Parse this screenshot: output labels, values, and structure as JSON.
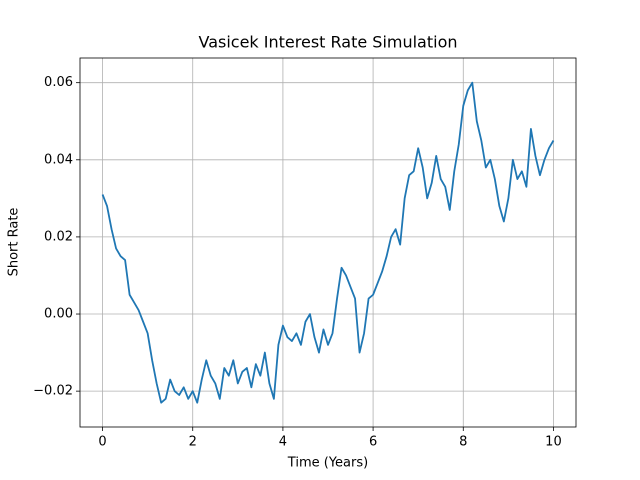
{
  "chart_data": {
    "type": "line",
    "title": "Vasicek Interest Rate Simulation",
    "x_label": "Time (Years)",
    "y_label": "Short Rate",
    "x": [
      0,
      0.1,
      0.2,
      0.3,
      0.4,
      0.5,
      0.6,
      0.7,
      0.8,
      0.9,
      1,
      1.1,
      1.2,
      1.3,
      1.4,
      1.5,
      1.6,
      1.7,
      1.8,
      1.9,
      2,
      2.1,
      2.2,
      2.3,
      2.4,
      2.5,
      2.6,
      2.7,
      2.8,
      2.9,
      3,
      3.1,
      3.2,
      3.3,
      3.4,
      3.5,
      3.6,
      3.7,
      3.8,
      3.9,
      4,
      4.1,
      4.2,
      4.3,
      4.4,
      4.5,
      4.6,
      4.7,
      4.8,
      4.9,
      5,
      5.1,
      5.2,
      5.3,
      5.4,
      5.5,
      5.6,
      5.7,
      5.8,
      5.9,
      6,
      6.1,
      6.2,
      6.3,
      6.4,
      6.5,
      6.6,
      6.7,
      6.8,
      6.9,
      7,
      7.1,
      7.2,
      7.3,
      7.4,
      7.5,
      7.6,
      7.7,
      7.8,
      7.9,
      8,
      8.1,
      8.2,
      8.3,
      8.4,
      8.5,
      8.6,
      8.7,
      8.8,
      8.9,
      9,
      9.1,
      9.2,
      9.3,
      9.4,
      9.5,
      9.6,
      9.7,
      9.8,
      9.9,
      10
    ],
    "series": [
      {
        "color": "#1f77b4",
        "values": [
          0.031,
          0.028,
          0.022,
          0.017,
          0.015,
          0.014,
          0.005,
          0.003,
          0.001,
          -0.002,
          -0.005,
          -0.012,
          -0.018,
          -0.023,
          -0.022,
          -0.017,
          -0.02,
          -0.021,
          -0.019,
          -0.022,
          -0.02,
          -0.023,
          -0.017,
          -0.012,
          -0.016,
          -0.018,
          -0.022,
          -0.014,
          -0.016,
          -0.012,
          -0.018,
          -0.015,
          -0.014,
          -0.019,
          -0.013,
          -0.016,
          -0.01,
          -0.018,
          -0.022,
          -0.008,
          -0.003,
          -0.006,
          -0.007,
          -0.005,
          -0.008,
          -0.002,
          0.0,
          -0.006,
          -0.01,
          -0.004,
          -0.008,
          -0.005,
          0.004,
          0.012,
          0.01,
          0.007,
          0.004,
          -0.01,
          -0.005,
          0.004,
          0.005,
          0.008,
          0.011,
          0.015,
          0.02,
          0.022,
          0.018,
          0.03,
          0.036,
          0.037,
          0.043,
          0.038,
          0.03,
          0.034,
          0.041,
          0.035,
          0.033,
          0.027,
          0.037,
          0.044,
          0.054,
          0.058,
          0.06,
          0.05,
          0.045,
          0.038,
          0.04,
          0.035,
          0.028,
          0.024,
          0.03,
          0.04,
          0.035,
          0.037,
          0.033,
          0.048,
          0.041,
          0.036,
          0.04,
          0.043,
          0.045
        ]
      }
    ],
    "xlim": [
      -0.5,
      10.5
    ],
    "ylim": [
      -0.0293,
      0.0664
    ],
    "xticks": [
      0,
      2,
      4,
      6,
      8,
      10
    ],
    "yticks": [
      {
        "value": -0.02,
        "label": "−0.02"
      },
      {
        "value": 0,
        "label": "0.00"
      },
      {
        "value": 0.02,
        "label": "0.02"
      },
      {
        "value": 0.04,
        "label": "0.04"
      },
      {
        "value": 0.06,
        "label": "0.06"
      }
    ],
    "grid": true
  }
}
